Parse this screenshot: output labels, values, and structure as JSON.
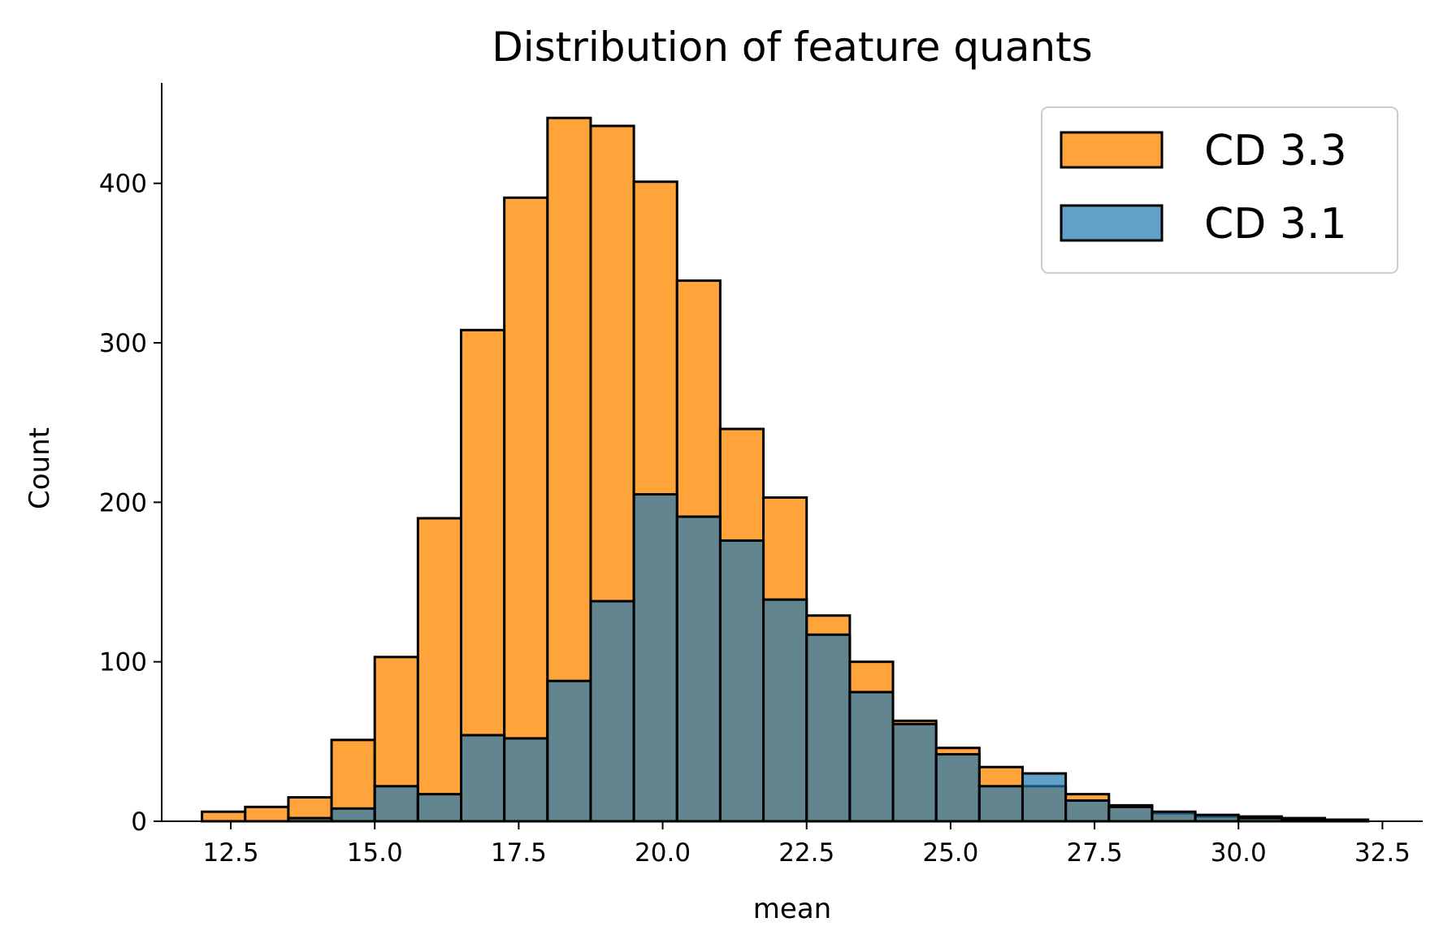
{
  "chart_data": {
    "type": "bar",
    "title": "Distribution of feature quants",
    "xlabel": "mean",
    "ylabel": "Count",
    "xlim": [
      11.3,
      33.2
    ],
    "ylim": [
      0,
      463
    ],
    "xticks": [
      12.5,
      15.0,
      17.5,
      20.0,
      22.5,
      25.0,
      27.5,
      30.0,
      32.5
    ],
    "yticks": [
      0,
      100,
      200,
      300,
      400
    ],
    "grid": false,
    "legend_position": "top-right",
    "bin_edges": [
      12.0,
      12.75,
      13.5,
      14.25,
      15.0,
      15.75,
      16.5,
      17.25,
      18.0,
      18.75,
      19.5,
      20.25,
      21.0,
      21.75,
      22.5,
      23.25,
      24.0,
      24.75,
      25.5,
      26.25,
      27.0,
      27.75,
      28.5,
      29.25,
      30.0,
      30.75,
      31.5,
      32.25
    ],
    "series": [
      {
        "name": "CD 3.3",
        "color": "#ff9c2a",
        "alpha": 0.92,
        "values": [
          6,
          9,
          15,
          51,
          103,
          190,
          308,
          391,
          441,
          436,
          401,
          339,
          246,
          203,
          129,
          100,
          63,
          46,
          34,
          22,
          17,
          10,
          5,
          3,
          3,
          2,
          1
        ]
      },
      {
        "name": "CD 3.1",
        "color": "#1f77b4",
        "alpha": 0.7,
        "values": [
          0,
          0,
          2,
          8,
          22,
          17,
          54,
          52,
          88,
          138,
          205,
          191,
          176,
          139,
          117,
          81,
          61,
          42,
          22,
          30,
          13,
          9,
          6,
          4,
          2,
          1,
          0
        ]
      }
    ]
  }
}
